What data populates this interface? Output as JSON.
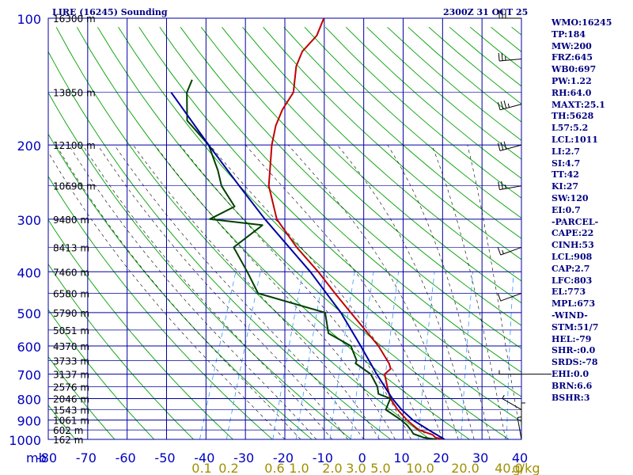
{
  "header": {
    "title": "LIRE (16245) Sounding",
    "timestamp": "2300Z 31 OCT 25"
  },
  "indices": [
    "WMO:16245",
    "TP:184",
    "MW:200",
    "FRZ:645",
    "WB0:697",
    "PW:1.22",
    "RH:64.0",
    "MAXT:25.1",
    "TH:5628",
    "L57:5.2",
    "LCL:1011",
    "LI:2.7",
    "SI:4.7",
    "TT:42",
    "KI:27",
    "SW:120",
    "EI:0.7",
    "-PARCEL-",
    "CAPE:22",
    "CINH:53",
    "LCL:908",
    "CAP:2.7",
    "LFC:803",
    "EL:773",
    "MPL:673",
    "-WIND-",
    "STM:51/7",
    "HEL:-79",
    "SHR-:0.0",
    "SRDS:-78",
    "EHI:0.0",
    "BRN:6.6",
    "BSHR:3"
  ],
  "colors": {
    "grid": "#0000a0",
    "dry_adiabat": "#00a000",
    "moist_adiabat": "#000000",
    "mixing_ratio": "#3399ff",
    "temperature": "#c00000",
    "dewpoint": "#004000",
    "parcel": "#0000a0",
    "axis_text_blue": "#0000c0",
    "mixing_label": "#a09000",
    "index_text": "#000080"
  },
  "chart_data": {
    "type": "line",
    "title": "LIRE (16245) Sounding",
    "subtitle": "2300Z 31 OCT 25",
    "x_axis_unit": "",
    "y_axis_unit": "mb",
    "xlim": [
      -80,
      40
    ],
    "ylim": [
      1000,
      100
    ],
    "y_log_scale": true,
    "grid": true,
    "pressure_ticks": [
      100,
      200,
      300,
      400,
      500,
      600,
      700,
      800,
      900,
      1000
    ],
    "pressure_tick_labels": [
      "100",
      "200",
      "300",
      "400",
      "500",
      "600",
      "700",
      "800",
      "900",
      "1000"
    ],
    "temperature_ticks": [
      -80,
      -70,
      -60,
      -50,
      -40,
      -30,
      -20,
      -10,
      0,
      10,
      20,
      30,
      40
    ],
    "temperature_tick_labels": [
      "-80",
      "-70",
      "-60",
      "-50",
      "-40",
      "-30",
      "-20",
      "-10",
      "0",
      "10",
      "20",
      "30",
      "40"
    ],
    "y_axis_label": "mb",
    "height_labels": [
      {
        "p": 1000,
        "label": "162 m"
      },
      {
        "p": 950,
        "label": "602 m"
      },
      {
        "p": 900,
        "label": "1061 m"
      },
      {
        "p": 850,
        "label": "1543 m"
      },
      {
        "p": 800,
        "label": "2046 m"
      },
      {
        "p": 750,
        "label": "2576 m"
      },
      {
        "p": 700,
        "label": "3137 m"
      },
      {
        "p": 650,
        "label": "3733 m"
      },
      {
        "p": 600,
        "label": "4370 m"
      },
      {
        "p": 550,
        "label": "5051 m"
      },
      {
        "p": 500,
        "label": "5790 m"
      },
      {
        "p": 450,
        "label": "6580 m"
      },
      {
        "p": 400,
        "label": "7460 m"
      },
      {
        "p": 350,
        "label": "8413 m"
      },
      {
        "p": 300,
        "label": "9480 m"
      },
      {
        "p": 250,
        "label": "10690 m"
      },
      {
        "p": 200,
        "label": "12100 m"
      },
      {
        "p": 150,
        "label": "13850 m"
      },
      {
        "p": 100,
        "label": "16300 m"
      }
    ],
    "mixing_ratio_labels": [
      "0.1",
      "0.2",
      "0.6",
      "1.0",
      "2.0",
      "3.0",
      "5.0",
      "10.0",
      "20.0",
      "40.0",
      "g/kg"
    ],
    "mixing_ratio_values": [
      0.1,
      0.2,
      0.6,
      1.0,
      2.0,
      3.0,
      5.0,
      10.0,
      20.0,
      40.0
    ],
    "series": [
      {
        "key": "temperature",
        "points": [
          {
            "p": 1000,
            "t": 20.5
          },
          {
            "p": 990,
            "t": 18.0
          },
          {
            "p": 975,
            "t": 17.0
          },
          {
            "p": 950,
            "t": 13.0
          },
          {
            "p": 925,
            "t": 11.0
          },
          {
            "p": 900,
            "t": 9.0
          },
          {
            "p": 850,
            "t": 5.5
          },
          {
            "p": 800,
            "t": 2.5
          },
          {
            "p": 750,
            "t": 0.5
          },
          {
            "p": 700,
            "t": -1.5
          },
          {
            "p": 680,
            "t": -0.5
          },
          {
            "p": 660,
            "t": -1.5
          },
          {
            "p": 600,
            "t": -6.0
          },
          {
            "p": 550,
            "t": -11.0
          },
          {
            "p": 500,
            "t": -16.5
          },
          {
            "p": 450,
            "t": -22.5
          },
          {
            "p": 400,
            "t": -29.0
          },
          {
            "p": 350,
            "t": -37.0
          },
          {
            "p": 300,
            "t": -45.0
          },
          {
            "p": 250,
            "t": -50.5
          },
          {
            "p": 200,
            "t": -54.0
          },
          {
            "p": 180,
            "t": -55.0
          },
          {
            "p": 165,
            "t": -55.0
          },
          {
            "p": 150,
            "t": -54.0
          },
          {
            "p": 130,
            "t": -56.0
          },
          {
            "p": 120,
            "t": -56.0
          },
          {
            "p": 110,
            "t": -54.0
          },
          {
            "p": 100,
            "t": -54.0
          }
        ]
      },
      {
        "key": "dewpoint",
        "points": [
          {
            "p": 1000,
            "t": 18.5
          },
          {
            "p": 990,
            "t": 15.0
          },
          {
            "p": 970,
            "t": 12.0
          },
          {
            "p": 950,
            "t": 11.0
          },
          {
            "p": 925,
            "t": 9.5
          },
          {
            "p": 900,
            "t": 7.5
          },
          {
            "p": 850,
            "t": 2.5
          },
          {
            "p": 800,
            "t": 2.5
          },
          {
            "p": 780,
            "t": -1.0
          },
          {
            "p": 750,
            "t": -2.0
          },
          {
            "p": 700,
            "t": -5.0
          },
          {
            "p": 660,
            "t": -10.0
          },
          {
            "p": 650,
            "t": -10.0
          },
          {
            "p": 600,
            "t": -13.0
          },
          {
            "p": 560,
            "t": -20.0
          },
          {
            "p": 500,
            "t": -23.0
          },
          {
            "p": 450,
            "t": -42.0
          },
          {
            "p": 400,
            "t": -47.0
          },
          {
            "p": 350,
            "t": -53.0
          },
          {
            "p": 310,
            "t": -48.0
          },
          {
            "p": 300,
            "t": -62.0
          },
          {
            "p": 280,
            "t": -57.0
          },
          {
            "p": 250,
            "t": -62.5
          },
          {
            "p": 230,
            "t": -65.0
          },
          {
            "p": 200,
            "t": -70.0
          },
          {
            "p": 175,
            "t": -78.0
          },
          {
            "p": 150,
            "t": -81.0
          },
          {
            "p": 140,
            "t": -81.0
          }
        ]
      },
      {
        "key": "parcel",
        "points": [
          {
            "p": 1000,
            "t": 20.5
          },
          {
            "p": 950,
            "t": 15.5
          },
          {
            "p": 900,
            "t": 10.5
          },
          {
            "p": 850,
            "t": 6.5
          },
          {
            "p": 800,
            "t": 3.0
          },
          {
            "p": 700,
            "t": -3.5
          },
          {
            "p": 600,
            "t": -10.5
          },
          {
            "p": 500,
            "t": -19.0
          },
          {
            "p": 400,
            "t": -31.0
          },
          {
            "p": 300,
            "t": -48.0
          },
          {
            "p": 250,
            "t": -58.0
          },
          {
            "p": 200,
            "t": -70.0
          },
          {
            "p": 150,
            "t": -85.0
          }
        ]
      }
    ],
    "wind_barbs": [
      {
        "p": 100,
        "dir": 270,
        "speed": 30
      },
      {
        "p": 125,
        "dir": 265,
        "speed": 25
      },
      {
        "p": 160,
        "dir": 255,
        "speed": 35
      },
      {
        "p": 200,
        "dir": 255,
        "speed": 30
      },
      {
        "p": 250,
        "dir": 260,
        "speed": 25
      },
      {
        "p": 350,
        "dir": 250,
        "speed": 15
      },
      {
        "p": 450,
        "dir": 250,
        "speed": 10
      },
      {
        "p": 700,
        "dir": 270,
        "speed": 5
      },
      {
        "p": 850,
        "dir": 300,
        "speed": 5
      },
      {
        "p": 925,
        "dir": 360,
        "speed": 5
      },
      {
        "p": 1000,
        "dir": 350,
        "speed": 5
      }
    ]
  }
}
